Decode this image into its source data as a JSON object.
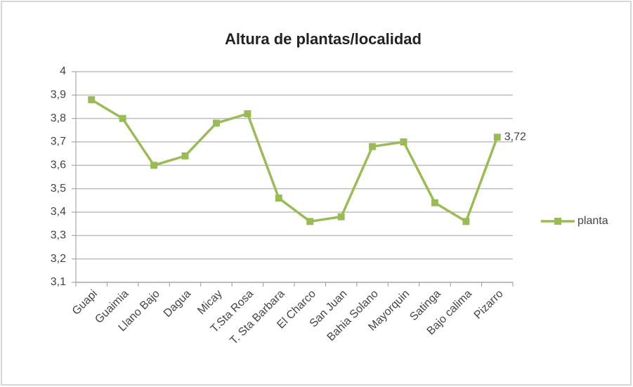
{
  "chart_data": {
    "type": "line",
    "title": "Altura de plantas/localidad",
    "categories": [
      "Guapi",
      "Guaimia",
      "Llano Bajo",
      "Dagua",
      "Micay",
      "T.Sta Rosa",
      "T. Sta Barbara",
      "El Charco",
      "San Juan",
      "Bahia Solano",
      "Mayorquin",
      "Satinga",
      "Bajo calima",
      "Pizarro"
    ],
    "series": [
      {
        "name": "planta",
        "color": "#9bbb59",
        "values": [
          3.88,
          3.8,
          3.6,
          3.64,
          3.78,
          3.82,
          3.46,
          3.36,
          3.38,
          3.68,
          3.7,
          3.44,
          3.36,
          3.72
        ],
        "value_labels": [
          null,
          null,
          null,
          null,
          null,
          null,
          null,
          null,
          null,
          null,
          null,
          null,
          null,
          "3,72"
        ]
      }
    ],
    "ylim": [
      3.1,
      4
    ],
    "yticks": [
      {
        "value": 3.1,
        "label": "3,1"
      },
      {
        "value": 3.2,
        "label": "3,2"
      },
      {
        "value": 3.3,
        "label": "3,3"
      },
      {
        "value": 3.4,
        "label": "3,4"
      },
      {
        "value": 3.5,
        "label": "3,5"
      },
      {
        "value": 3.6,
        "label": "3,6"
      },
      {
        "value": 3.7,
        "label": "3,7"
      },
      {
        "value": 3.8,
        "label": "3,8"
      },
      {
        "value": 3.9,
        "label": "3,9"
      },
      {
        "value": 4,
        "label": "4"
      }
    ],
    "grid": true,
    "legend": "right"
  }
}
